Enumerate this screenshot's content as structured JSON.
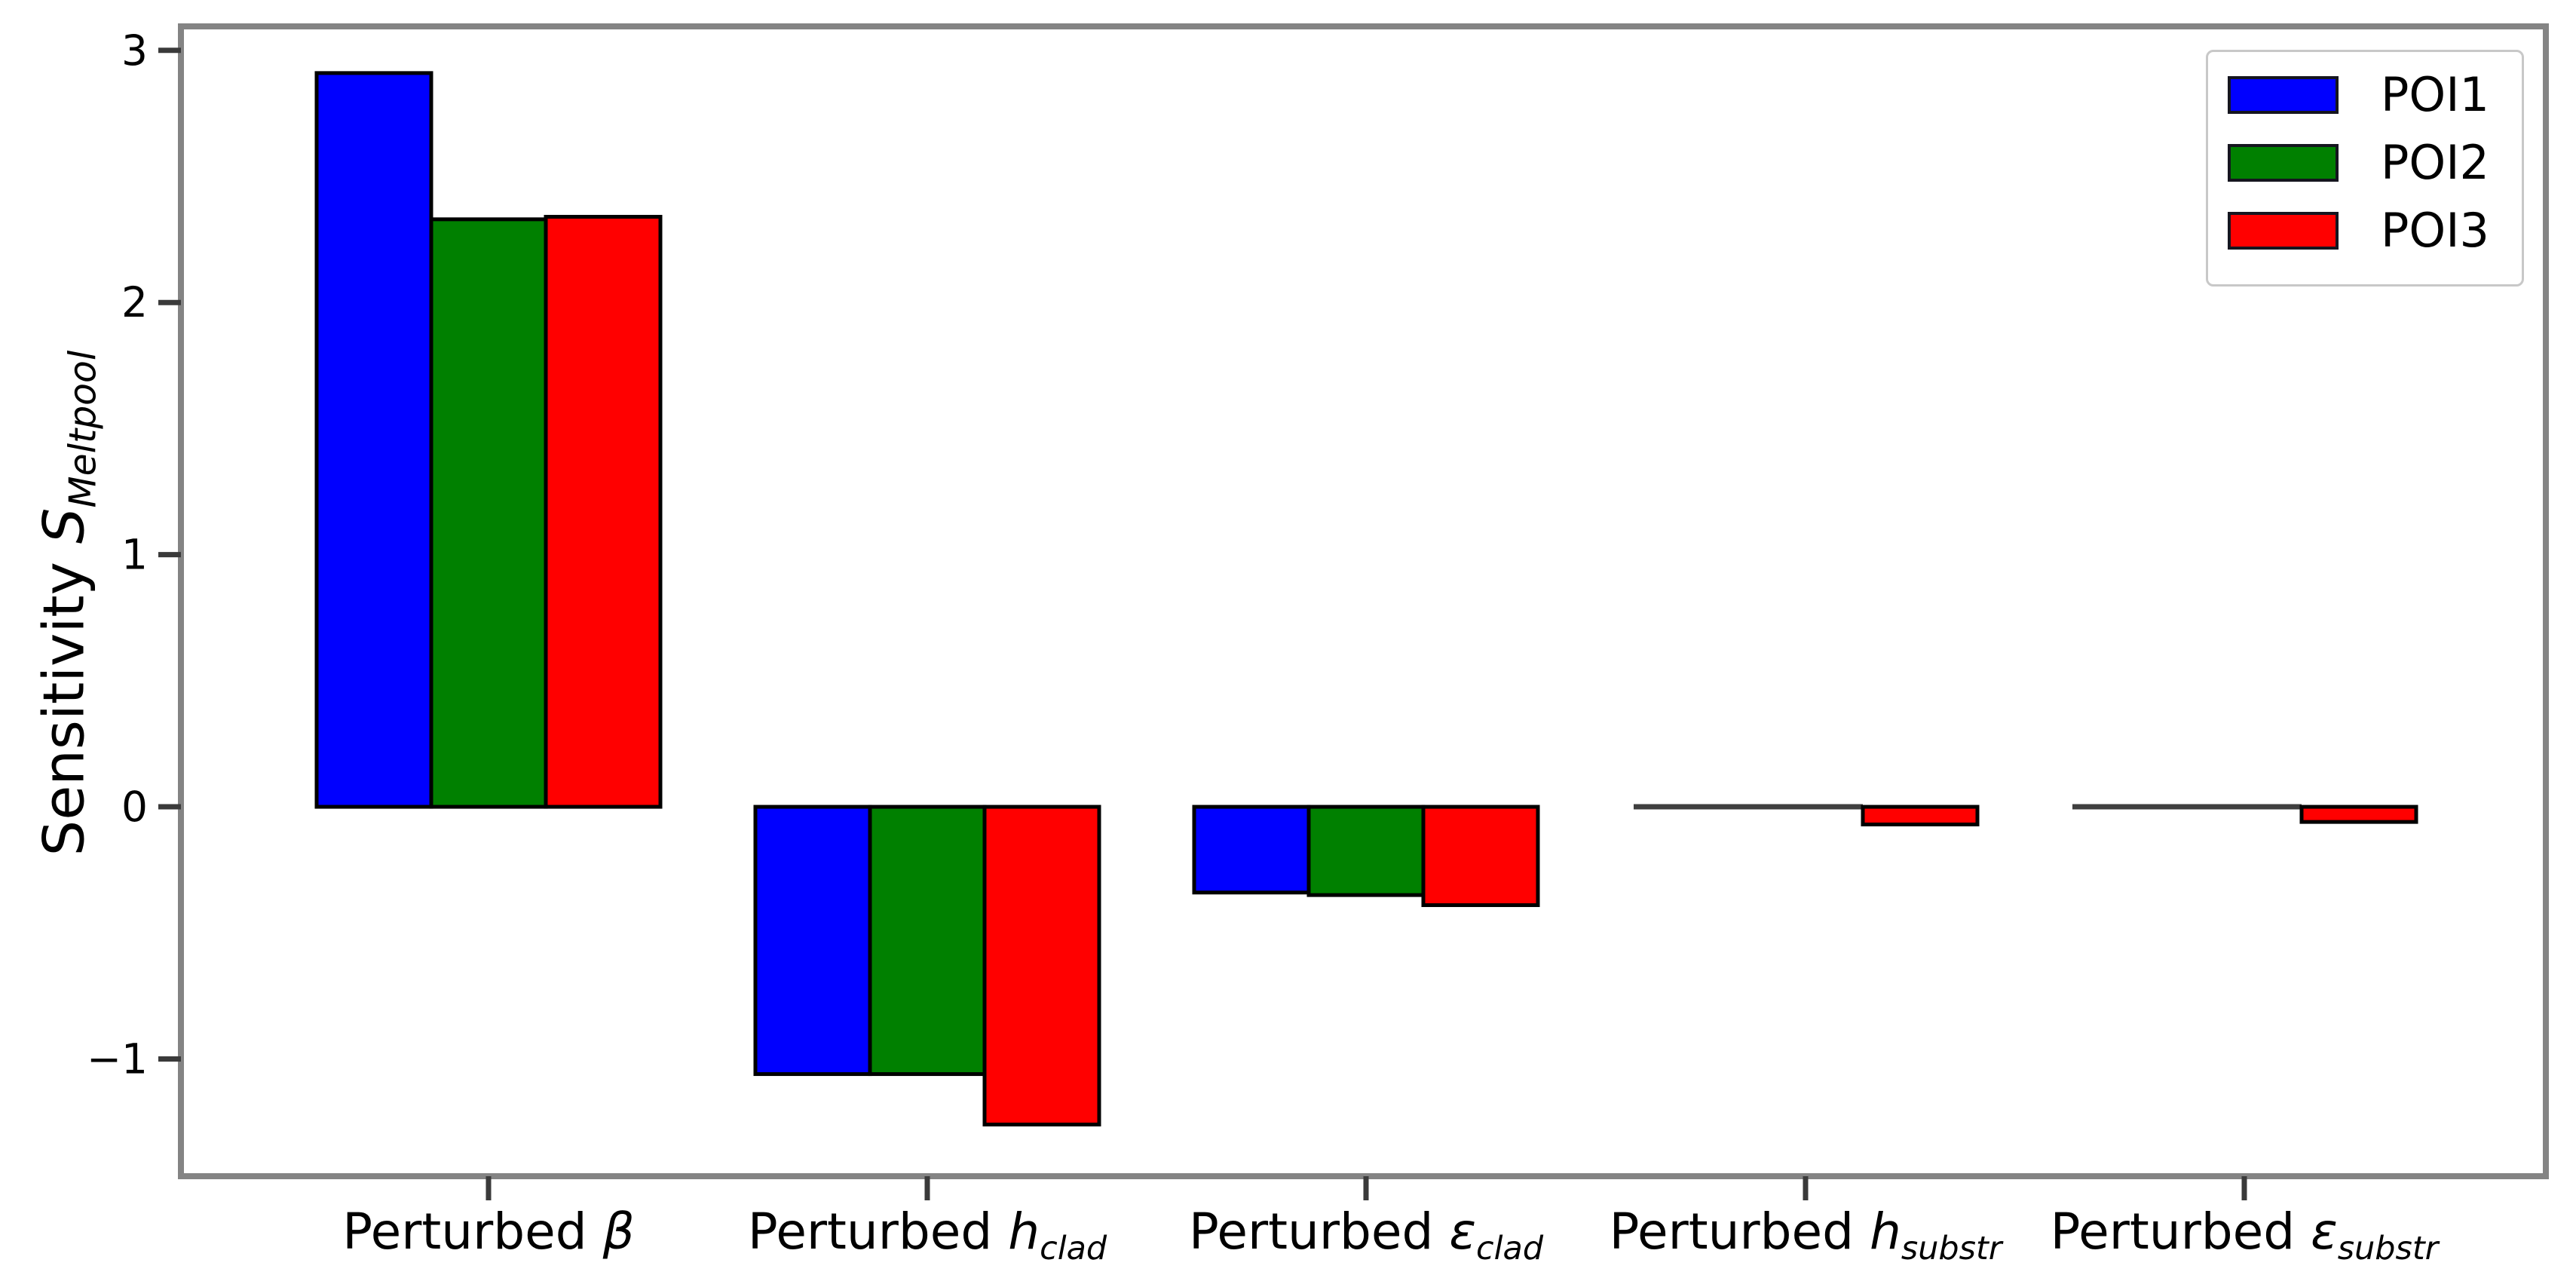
{
  "figure": {
    "background": "#ffffff",
    "spine_color": "#848484",
    "tick_color": "#3a3a3a",
    "text_color": "#000000",
    "bar_edge_color": "#000000",
    "zero_bar_color": "#3f3f3f",
    "legend_border_color": "#c8c8c8"
  },
  "chart_data": {
    "type": "bar",
    "title": "",
    "ylabel": {
      "prefix": "Sensitivity ",
      "symbol": "S",
      "subscript": "Meltpool"
    },
    "categories": [
      {
        "prefix": "Perturbed ",
        "symbol": "β",
        "subscript": ""
      },
      {
        "prefix": "Perturbed ",
        "symbol": "h",
        "subscript": "clad"
      },
      {
        "prefix": "Perturbed ",
        "symbol": "ε",
        "subscript": "clad"
      },
      {
        "prefix": "Perturbed ",
        "symbol": "h",
        "subscript": "substr"
      },
      {
        "prefix": "Perturbed ",
        "symbol": "ε",
        "subscript": "substr"
      }
    ],
    "series": [
      {
        "name": "POI1",
        "color": "#0000ff",
        "values": [
          2.91,
          -1.06,
          -0.34,
          0.0,
          0.0
        ]
      },
      {
        "name": "POI2",
        "color": "#008000",
        "values": [
          2.33,
          -1.06,
          -0.35,
          0.0,
          0.0
        ]
      },
      {
        "name": "POI3",
        "color": "#ff0000",
        "values": [
          2.34,
          -1.26,
          -0.39,
          -0.07,
          -0.06
        ]
      }
    ],
    "yticks": [
      3,
      2,
      1,
      0,
      -1
    ],
    "ytick_labels": [
      "3",
      "2",
      "1",
      "0",
      "−1"
    ],
    "ylim": [
      -1.465,
      3.095
    ],
    "grid": false,
    "legend": {
      "position": "upper right",
      "entries": [
        "POI1",
        "POI2",
        "POI3"
      ]
    }
  }
}
